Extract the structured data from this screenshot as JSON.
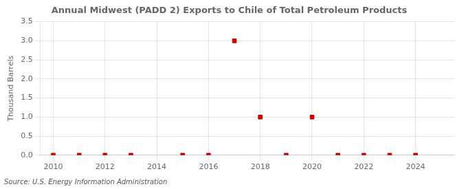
{
  "chart_data": {
    "type": "scatter",
    "title": "Annual Midwest (PADD 2) Exports to Chile of Total Petroleum Products",
    "ylabel": "Thousand Barrels",
    "annotations": [
      "Source: U.S. Energy Information Administration"
    ],
    "x": [
      2010,
      2011,
      2012,
      2013,
      2015,
      2016,
      2017,
      2018,
      2019,
      2020,
      2021,
      2022,
      2023,
      2024
    ],
    "values": [
      0.0,
      0.0,
      0.0,
      0.0,
      0.0,
      0.0,
      3.0,
      1.0,
      0.0,
      1.0,
      0.0,
      0.0,
      0.0,
      0.0
    ],
    "color": "#cc0000",
    "marker": "square",
    "xlim": [
      2009.5,
      2025.5
    ],
    "xticks": [
      2010,
      2012,
      2014,
      2016,
      2018,
      2020,
      2022,
      2024
    ],
    "ylim": [
      0,
      3.5
    ],
    "yticks": [
      {
        "value": 0,
        "label": "0.0"
      },
      0.5,
      {
        "value": 1,
        "label": "1.0"
      },
      1.5,
      {
        "value": 2,
        "label": "2.0"
      },
      2.5,
      {
        "value": 3,
        "label": "3.0"
      },
      3.5
    ],
    "grid": true
  }
}
